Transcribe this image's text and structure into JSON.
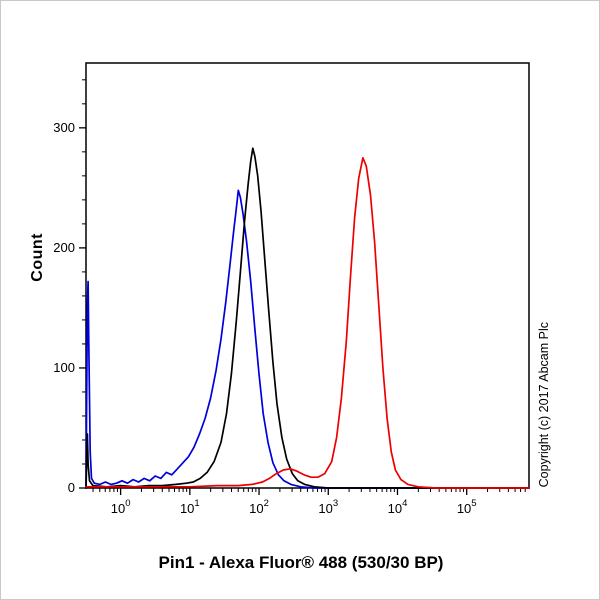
{
  "chart_data": {
    "type": "line",
    "title": "Pin1 - Alexa Fluor® 488 (530/30 BP)",
    "ylabel": "Count",
    "xlabel": "",
    "copyright": "Copyright (c) 2017 Abcam Plc",
    "x_scale": "log10",
    "xlim_log": [
      -0.5,
      5.9
    ],
    "ylim": [
      0,
      354
    ],
    "y_ticks": [
      0,
      100,
      200,
      300
    ],
    "y_minor_step": 20,
    "x_ticks_exponents": [
      0,
      1,
      2,
      3,
      4,
      5
    ],
    "grid": false,
    "legend": "none",
    "frame_color": "#000000",
    "series": [
      {
        "name": "blue-curve",
        "color": "#0000dd",
        "points": [
          [
            -0.5,
            0
          ],
          [
            -0.48,
            155
          ],
          [
            -0.47,
            172
          ],
          [
            -0.46,
            120
          ],
          [
            -0.44,
            30
          ],
          [
            -0.42,
            8
          ],
          [
            -0.38,
            4
          ],
          [
            -0.3,
            3
          ],
          [
            -0.22,
            5
          ],
          [
            -0.14,
            3
          ],
          [
            -0.06,
            4
          ],
          [
            0.02,
            6
          ],
          [
            0.1,
            4
          ],
          [
            0.18,
            7
          ],
          [
            0.26,
            5
          ],
          [
            0.34,
            8
          ],
          [
            0.42,
            6
          ],
          [
            0.5,
            10
          ],
          [
            0.58,
            8
          ],
          [
            0.66,
            13
          ],
          [
            0.74,
            11
          ],
          [
            0.82,
            16
          ],
          [
            0.9,
            21
          ],
          [
            0.98,
            26
          ],
          [
            1.06,
            34
          ],
          [
            1.14,
            45
          ],
          [
            1.22,
            58
          ],
          [
            1.3,
            75
          ],
          [
            1.38,
            98
          ],
          [
            1.45,
            124
          ],
          [
            1.52,
            155
          ],
          [
            1.58,
            186
          ],
          [
            1.63,
            212
          ],
          [
            1.67,
            232
          ],
          [
            1.7,
            248
          ],
          [
            1.73,
            242
          ],
          [
            1.77,
            228
          ],
          [
            1.82,
            205
          ],
          [
            1.88,
            172
          ],
          [
            1.94,
            132
          ],
          [
            2.0,
            95
          ],
          [
            2.06,
            62
          ],
          [
            2.13,
            38
          ],
          [
            2.2,
            21
          ],
          [
            2.28,
            11
          ],
          [
            2.36,
            6
          ],
          [
            2.46,
            3
          ],
          [
            2.6,
            1
          ],
          [
            2.8,
            0
          ],
          [
            5.9,
            0
          ]
        ]
      },
      {
        "name": "black-curve",
        "color": "#000000",
        "points": [
          [
            -0.5,
            0
          ],
          [
            -0.48,
            45
          ],
          [
            -0.47,
            20
          ],
          [
            -0.45,
            6
          ],
          [
            -0.4,
            2
          ],
          [
            -0.2,
            1
          ],
          [
            0.0,
            2
          ],
          [
            0.2,
            1
          ],
          [
            0.4,
            2
          ],
          [
            0.6,
            2
          ],
          [
            0.8,
            3
          ],
          [
            0.95,
            4
          ],
          [
            1.05,
            5
          ],
          [
            1.15,
            8
          ],
          [
            1.25,
            13
          ],
          [
            1.35,
            22
          ],
          [
            1.45,
            38
          ],
          [
            1.53,
            62
          ],
          [
            1.6,
            95
          ],
          [
            1.67,
            138
          ],
          [
            1.73,
            180
          ],
          [
            1.79,
            222
          ],
          [
            1.84,
            252
          ],
          [
            1.88,
            272
          ],
          [
            1.91,
            283
          ],
          [
            1.94,
            276
          ],
          [
            1.98,
            260
          ],
          [
            2.03,
            230
          ],
          [
            2.08,
            192
          ],
          [
            2.14,
            148
          ],
          [
            2.2,
            105
          ],
          [
            2.26,
            70
          ],
          [
            2.33,
            42
          ],
          [
            2.4,
            24
          ],
          [
            2.48,
            12
          ],
          [
            2.56,
            6
          ],
          [
            2.66,
            3
          ],
          [
            2.8,
            1
          ],
          [
            3.0,
            0
          ],
          [
            5.9,
            0
          ]
        ]
      },
      {
        "name": "red-curve",
        "color": "#ee0000",
        "points": [
          [
            -0.5,
            1
          ],
          [
            0.0,
            1
          ],
          [
            0.5,
            1
          ],
          [
            1.0,
            1
          ],
          [
            1.4,
            2
          ],
          [
            1.7,
            2
          ],
          [
            1.9,
            3
          ],
          [
            2.05,
            5
          ],
          [
            2.15,
            8
          ],
          [
            2.25,
            12
          ],
          [
            2.35,
            15
          ],
          [
            2.45,
            16
          ],
          [
            2.55,
            14
          ],
          [
            2.65,
            11
          ],
          [
            2.75,
            9
          ],
          [
            2.85,
            9
          ],
          [
            2.95,
            12
          ],
          [
            3.05,
            22
          ],
          [
            3.12,
            42
          ],
          [
            3.19,
            75
          ],
          [
            3.26,
            122
          ],
          [
            3.32,
            175
          ],
          [
            3.38,
            225
          ],
          [
            3.44,
            258
          ],
          [
            3.5,
            275
          ],
          [
            3.55,
            268
          ],
          [
            3.61,
            244
          ],
          [
            3.67,
            205
          ],
          [
            3.73,
            152
          ],
          [
            3.79,
            100
          ],
          [
            3.85,
            58
          ],
          [
            3.91,
            30
          ],
          [
            3.97,
            15
          ],
          [
            4.05,
            7
          ],
          [
            4.15,
            3
          ],
          [
            4.3,
            1
          ],
          [
            4.55,
            0
          ],
          [
            5.9,
            0
          ]
        ]
      }
    ]
  }
}
